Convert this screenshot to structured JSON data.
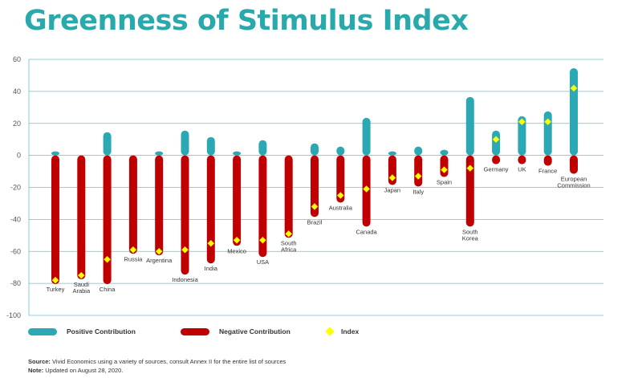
{
  "title": "Greenness of Stimulus Index",
  "chart_data": {
    "type": "bar",
    "title": "Greenness of Stimulus Index",
    "xlabel": "",
    "ylabel": "",
    "ylim": [
      -100,
      60
    ],
    "yticks": [
      60,
      40,
      20,
      0,
      -20,
      -40,
      -60,
      -80,
      -100
    ],
    "grid": true,
    "legend_position": "bottom",
    "categories": [
      "Turkey",
      "Saudi Arabia",
      "China",
      "Russia",
      "Argentina",
      "Indonesia",
      "India",
      "Mexico",
      "USA",
      "South Africa",
      "Brazil",
      "Australia",
      "Canada",
      "Japan",
      "Italy",
      "Spain",
      "South Korea",
      "Germany",
      "UK",
      "France",
      "European Commission"
    ],
    "series": [
      {
        "name": "Positive Contribution",
        "color": "#2aa9b5",
        "values": [
          1,
          0,
          13,
          0,
          1,
          14,
          10,
          1,
          8,
          0,
          6,
          4,
          22,
          1,
          4,
          2,
          35,
          14,
          23,
          26,
          53
        ]
      },
      {
        "name": "Negative Contribution",
        "color": "#c00000",
        "values": [
          -79,
          -76,
          -79,
          -60,
          -61,
          -73,
          -66,
          -55,
          -62,
          -50,
          -37,
          -28,
          -43,
          -17,
          -18,
          -12,
          -43,
          -4,
          -4,
          -5,
          -10
        ]
      },
      {
        "name": "Index",
        "color": "#ffff00",
        "values": [
          -78,
          -75,
          -65,
          -59,
          -60,
          -59,
          -55,
          -53,
          -53,
          -49,
          -32,
          -25,
          -21,
          -14,
          -13,
          -9,
          -8,
          10,
          21,
          21,
          42
        ]
      }
    ]
  },
  "legend": {
    "positive": "Positive Contribution",
    "negative": "Negative Contribution",
    "index": "Index"
  },
  "notes": {
    "source_label": "Source:",
    "source_text": "Vivid Economics using a variety of sources, consult Annex II for the entire list of sources",
    "note_label": "Note:",
    "note_text": "Updated on August 28, 2020."
  }
}
